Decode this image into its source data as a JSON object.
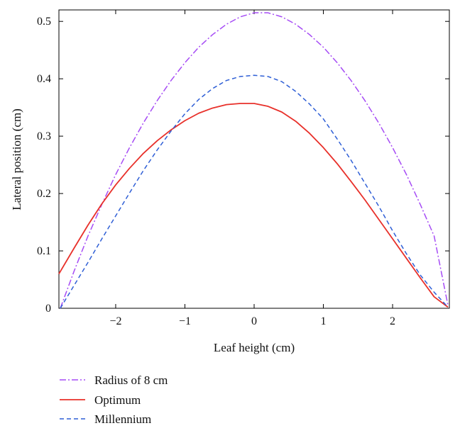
{
  "chart_data": {
    "type": "line",
    "title": "",
    "xlabel": "Leaf height (cm)",
    "ylabel": "Lateral position (cm)",
    "xlim": [
      -2.82,
      2.82
    ],
    "ylim": [
      0,
      0.52
    ],
    "xticks": [
      -2,
      -1,
      0,
      1,
      2
    ],
    "xtick_labels": [
      "−2",
      "−1",
      "0",
      "1",
      "2"
    ],
    "yticks": [
      0,
      0.1,
      0.2,
      0.3,
      0.4,
      0.5
    ],
    "ytick_labels": [
      "0",
      "0.1",
      "0.2",
      "0.3",
      "0.4",
      "0.5"
    ],
    "grid": false,
    "legend_position": "bottom-left, outside plot",
    "series": [
      {
        "name": "Radius of 8 cm",
        "color": "#a64cf5",
        "dash": "dash-dot",
        "x": [
          -2.8,
          -2.6,
          -2.4,
          -2.2,
          -2.0,
          -1.8,
          -1.6,
          -1.4,
          -1.2,
          -1.0,
          -0.8,
          -0.6,
          -0.4,
          -0.2,
          0.0,
          0.2,
          0.4,
          0.6,
          0.8,
          1.0,
          1.2,
          1.4,
          1.6,
          1.8,
          2.0,
          2.2,
          2.4,
          2.6,
          2.8
        ],
        "y": [
          0.0,
          0.065,
          0.126,
          0.181,
          0.233,
          0.28,
          0.323,
          0.362,
          0.397,
          0.428,
          0.455,
          0.477,
          0.495,
          0.508,
          0.515,
          0.515,
          0.508,
          0.495,
          0.477,
          0.455,
          0.428,
          0.397,
          0.362,
          0.323,
          0.28,
          0.233,
          0.181,
          0.126,
          0.005
        ]
      },
      {
        "name": "Optimum",
        "color": "#e8302a",
        "dash": "solid",
        "x": [
          -2.82,
          -2.6,
          -2.4,
          -2.2,
          -2.0,
          -1.8,
          -1.6,
          -1.4,
          -1.2,
          -1.0,
          -0.8,
          -0.6,
          -0.4,
          -0.2,
          0.0,
          0.2,
          0.4,
          0.6,
          0.8,
          1.0,
          1.2,
          1.4,
          1.6,
          1.8,
          2.0,
          2.2,
          2.4,
          2.6,
          2.8
        ],
        "y": [
          0.06,
          0.105,
          0.145,
          0.182,
          0.215,
          0.244,
          0.27,
          0.292,
          0.311,
          0.327,
          0.34,
          0.349,
          0.355,
          0.357,
          0.357,
          0.352,
          0.342,
          0.326,
          0.305,
          0.28,
          0.252,
          0.221,
          0.189,
          0.155,
          0.121,
          0.087,
          0.053,
          0.02,
          0.002
        ]
      },
      {
        "name": "Millennium",
        "color": "#2f5fd6",
        "dash": "dashed",
        "x": [
          -2.8,
          -2.6,
          -2.4,
          -2.2,
          -2.0,
          -1.8,
          -1.6,
          -1.4,
          -1.2,
          -1.0,
          -0.8,
          -0.6,
          -0.4,
          -0.2,
          0.0,
          0.2,
          0.4,
          0.6,
          0.8,
          1.0,
          1.2,
          1.4,
          1.6,
          1.8,
          2.0,
          2.2,
          2.4,
          2.6,
          2.8
        ],
        "y": [
          0.0,
          0.04,
          0.08,
          0.121,
          0.161,
          0.201,
          0.24,
          0.276,
          0.309,
          0.339,
          0.364,
          0.383,
          0.397,
          0.404,
          0.406,
          0.404,
          0.395,
          0.378,
          0.356,
          0.33,
          0.295,
          0.258,
          0.218,
          0.178,
          0.135,
          0.095,
          0.058,
          0.028,
          0.002
        ]
      }
    ]
  }
}
